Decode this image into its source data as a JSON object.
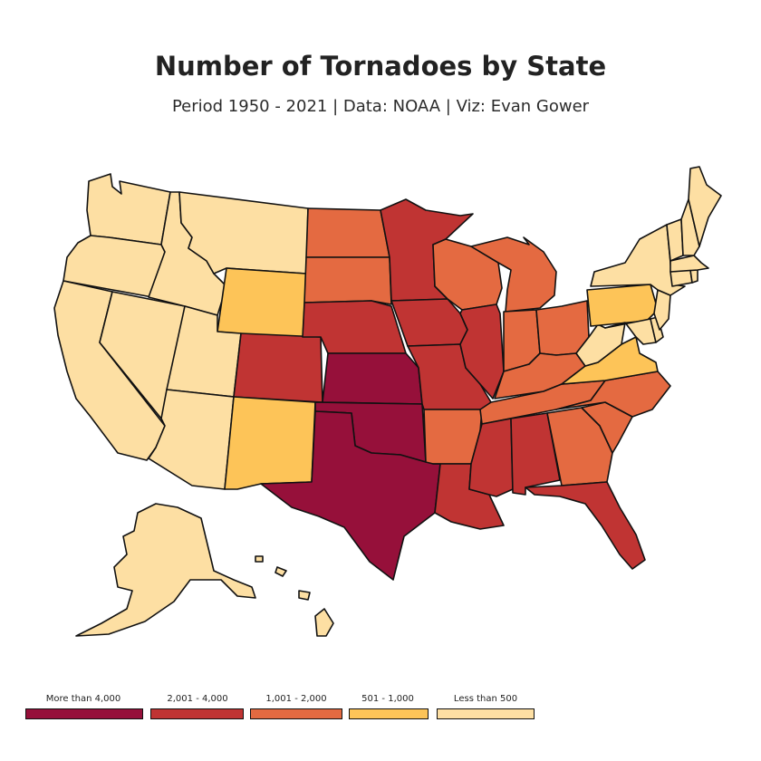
{
  "title": "Number of Tornadoes by State",
  "subtitle": "Period 1950 - 2021 | Data: NOAA | Viz: Evan Gower",
  "colors": {
    "more_than_4000": "#96103a",
    "2001_4000": "#c03433",
    "1001_2000": "#e46a41",
    "501_1000": "#fdc458",
    "less_than_500": "#fddfa3"
  },
  "legend": [
    {
      "label": "More than 4,000",
      "color": "#96103a"
    },
    {
      "label": "2,001 - 4,000",
      "color": "#c03433"
    },
    {
      "label": "1,001 - 2,000",
      "color": "#e46a41"
    },
    {
      "label": "501 - 1,000",
      "color": "#fdc458"
    },
    {
      "label": "Less than 500",
      "color": "#fddfa3"
    }
  ],
  "states": [
    {
      "name": "Washington",
      "bin": "less_than_500"
    },
    {
      "name": "Oregon",
      "bin": "less_than_500"
    },
    {
      "name": "California",
      "bin": "less_than_500"
    },
    {
      "name": "Nevada",
      "bin": "less_than_500"
    },
    {
      "name": "Idaho",
      "bin": "less_than_500"
    },
    {
      "name": "Montana",
      "bin": "less_than_500"
    },
    {
      "name": "Utah",
      "bin": "less_than_500"
    },
    {
      "name": "Arizona",
      "bin": "less_than_500"
    },
    {
      "name": "Wyoming",
      "bin": "501_1000"
    },
    {
      "name": "New Mexico",
      "bin": "501_1000"
    },
    {
      "name": "Colorado",
      "bin": "2001_4000"
    },
    {
      "name": "North Dakota",
      "bin": "1001_2000"
    },
    {
      "name": "South Dakota",
      "bin": "1001_2000"
    },
    {
      "name": "Nebraska",
      "bin": "2001_4000"
    },
    {
      "name": "Kansas",
      "bin": "more_than_4000"
    },
    {
      "name": "Oklahoma",
      "bin": "more_than_4000"
    },
    {
      "name": "Texas",
      "bin": "more_than_4000"
    },
    {
      "name": "Minnesota",
      "bin": "2001_4000"
    },
    {
      "name": "Iowa",
      "bin": "2001_4000"
    },
    {
      "name": "Missouri",
      "bin": "2001_4000"
    },
    {
      "name": "Arkansas",
      "bin": "1001_2000"
    },
    {
      "name": "Louisiana",
      "bin": "2001_4000"
    },
    {
      "name": "Wisconsin",
      "bin": "1001_2000"
    },
    {
      "name": "Illinois",
      "bin": "2001_4000"
    },
    {
      "name": "Michigan",
      "bin": "1001_2000"
    },
    {
      "name": "Indiana",
      "bin": "1001_2000"
    },
    {
      "name": "Ohio",
      "bin": "1001_2000"
    },
    {
      "name": "Kentucky",
      "bin": "1001_2000"
    },
    {
      "name": "Tennessee",
      "bin": "1001_2000"
    },
    {
      "name": "Mississippi",
      "bin": "2001_4000"
    },
    {
      "name": "Alabama",
      "bin": "2001_4000"
    },
    {
      "name": "Georgia",
      "bin": "1001_2000"
    },
    {
      "name": "Florida",
      "bin": "2001_4000"
    },
    {
      "name": "South Carolina",
      "bin": "1001_2000"
    },
    {
      "name": "North Carolina",
      "bin": "1001_2000"
    },
    {
      "name": "Virginia",
      "bin": "501_1000"
    },
    {
      "name": "West Virginia",
      "bin": "less_than_500"
    },
    {
      "name": "Pennsylvania",
      "bin": "501_1000"
    },
    {
      "name": "Maryland",
      "bin": "less_than_500"
    },
    {
      "name": "Delaware",
      "bin": "less_than_500"
    },
    {
      "name": "New Jersey",
      "bin": "less_than_500"
    },
    {
      "name": "New York",
      "bin": "less_than_500"
    },
    {
      "name": "Connecticut",
      "bin": "less_than_500"
    },
    {
      "name": "Rhode Island",
      "bin": "less_than_500"
    },
    {
      "name": "Massachusetts",
      "bin": "less_than_500"
    },
    {
      "name": "Vermont",
      "bin": "less_than_500"
    },
    {
      "name": "New Hampshire",
      "bin": "less_than_500"
    },
    {
      "name": "Maine",
      "bin": "less_than_500"
    },
    {
      "name": "Alaska",
      "bin": "less_than_500"
    },
    {
      "name": "Hawaii",
      "bin": "less_than_500"
    }
  ]
}
